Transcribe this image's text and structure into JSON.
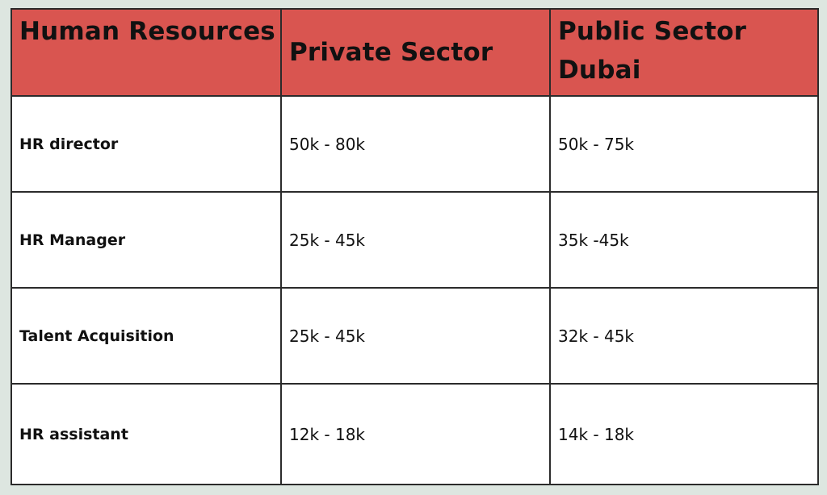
{
  "table": {
    "header_color": "#d95550",
    "headers": [
      "Human Resources",
      "Private Sector",
      "Public Sector Dubai"
    ],
    "rows": [
      {
        "role": "HR director",
        "private": "50k - 80k",
        "public": "50k - 75k"
      },
      {
        "role": "HR Manager",
        "private": "25k - 45k",
        "public": "35k -45k"
      },
      {
        "role": "Talent Acquisition",
        "private": "25k - 45k",
        "public": "32k - 45k"
      },
      {
        "role": "HR assistant",
        "private": "12k - 18k",
        "public": "14k - 18k"
      }
    ]
  }
}
